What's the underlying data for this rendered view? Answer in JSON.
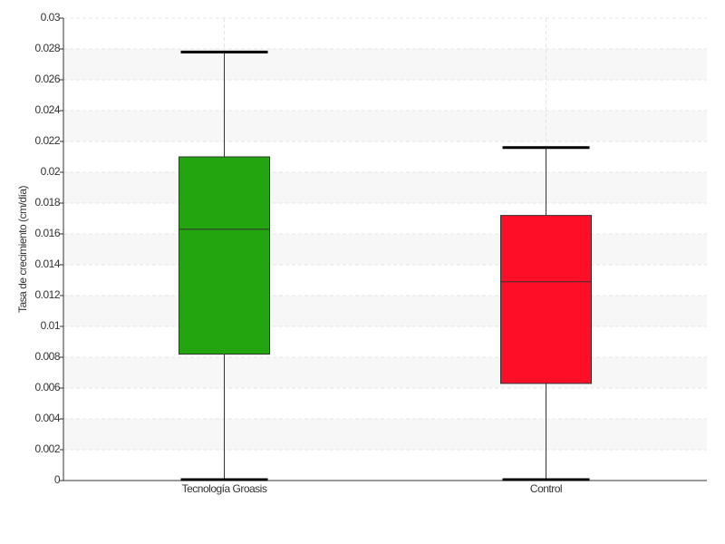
{
  "chart_data": {
    "type": "box",
    "y_label": "Tasa de crecimiento (cm/día)",
    "categories": [
      "Tecnología Groasis",
      "Control"
    ],
    "boxes": [
      {
        "min": 0,
        "q1": 0.0082,
        "median": 0.0163,
        "q3": 0.021,
        "max": 0.0278,
        "color": "#22a50e"
      },
      {
        "min": 0,
        "q1": 0.0063,
        "median": 0.0129,
        "q3": 0.0172,
        "max": 0.0216,
        "color": "#ff0e28"
      }
    ],
    "ylim": [
      0,
      0.03
    ],
    "yticks": [
      0,
      0.002,
      0.004,
      0.006,
      0.008,
      0.01,
      0.012,
      0.014,
      0.016,
      0.018,
      0.02,
      0.022,
      0.024,
      0.026,
      0.028,
      0.03
    ],
    "grid": true
  }
}
